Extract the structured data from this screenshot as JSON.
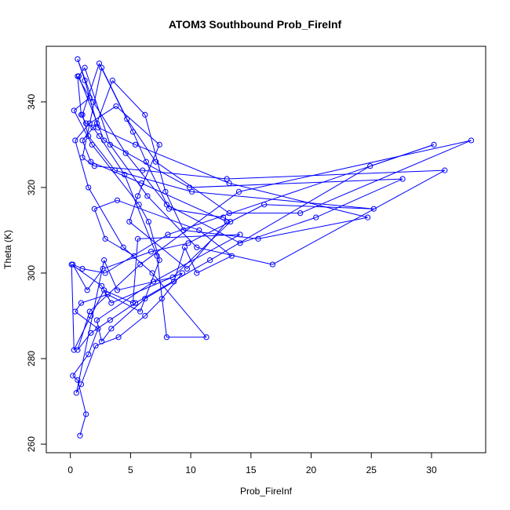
{
  "chart_data": {
    "type": "scatter",
    "title": "ATOM3 Southbound Prob_FireInf",
    "xlabel": "Prob_FireInf",
    "ylabel": "Theta (K)",
    "xlim": [
      -2,
      34.5
    ],
    "ylim": [
      258,
      353
    ],
    "x_ticks": [
      0,
      5,
      10,
      15,
      20,
      25,
      30
    ],
    "y_ticks": [
      260,
      280,
      300,
      320,
      340
    ],
    "grid": false,
    "legend": "none",
    "series": [
      {
        "style": "points-and-lines",
        "color": "#0000ff",
        "x": [
          0.8,
          1.3,
          0.6,
          0.2,
          1.5,
          2.3,
          0.4,
          0.9,
          3.1,
          5.8,
          7.4,
          6.5,
          5.7,
          1.8,
          0.3,
          1.6,
          0.6,
          0.9,
          1.3,
          1.9,
          2.4,
          4.5,
          7.2,
          8.0,
          11.3,
          6.8,
          4.4,
          1.5,
          0.4,
          1.6,
          3.8,
          7.4,
          5.6,
          4.9,
          9.7,
          13.0,
          5.9,
          1.7,
          1.0,
          2.2,
          3.5,
          6.2,
          7.9,
          9.4,
          15.6,
          24.7,
          13.2,
          5.4,
          2.3,
          1.2,
          0.6,
          1.9,
          4.6,
          8.0,
          14.1,
          20.4,
          27.6,
          9.9,
          2.8,
          0.7,
          1.2,
          3.3,
          6.4,
          10.5,
          16.8,
          31.1,
          13.0,
          6.0,
          2.0,
          1.0,
          2.6,
          4.7,
          7.1,
          13.2,
          19.1,
          33.3,
          14.0,
          5.8,
          1.6,
          0.6,
          1.7,
          3.3,
          5.4,
          11.6,
          24.9,
          30.2,
          8.1,
          2.9,
          1.0,
          0.2,
          1.4,
          2.7,
          6.7,
          9.8,
          16.1,
          25.2,
          10.1,
          3.7,
          1.5,
          1.0,
          2.4,
          5.2,
          6.3,
          8.2,
          12.7,
          13.3,
          8.5,
          3.9,
          2.8,
          0.5,
          0.9,
          2.1,
          4.0,
          6.2,
          7.6,
          9.3,
          3.4,
          2.6,
          0.1,
          0.3,
          1.7,
          2.8,
          5.2,
          5.6,
          14.1,
          6.9,
          2.2,
          2.6,
          3.4,
          6.2,
          8.6,
          9.5,
          10.5,
          13.4,
          10.7,
          3.9,
          2.0,
          2.9,
          5.3
        ],
        "y": [
          262,
          267,
          275,
          276,
          281,
          287,
          291,
          293,
          295,
          291,
          303,
          312,
          316,
          330,
          338,
          341,
          346,
          337,
          335,
          334,
          332,
          323,
          304,
          285,
          285,
          300,
          306,
          320,
          331,
          335,
          339,
          330,
          318,
          312,
          301,
          312,
          321,
          326,
          331,
          335,
          345,
          337,
          319,
          310,
          308,
          313,
          321,
          330,
          334,
          345,
          350,
          340,
          328,
          316,
          307,
          313,
          322,
          320,
          331,
          346,
          348,
          330,
          318,
          306,
          302,
          324,
          322,
          324,
          325,
          327,
          348,
          336,
          326,
          314,
          314,
          331,
          319,
          302,
          291,
          282,
          286,
          289,
          293,
          303,
          325,
          330,
          309,
          300,
          301,
          302,
          296,
          301,
          305,
          307,
          316,
          315,
          319,
          324,
          332,
          337,
          349,
          333,
          326,
          315,
          313,
          312,
          299,
          296,
          303,
          272,
          274,
          283,
          285,
          290,
          294,
          300,
          293,
          297,
          302,
          282,
          290,
          296,
          293,
          308,
          309,
          298,
          289,
          284,
          287,
          294,
          298,
          306,
          300,
          304,
          310,
          317,
          315,
          308,
          304
        ]
      }
    ]
  }
}
